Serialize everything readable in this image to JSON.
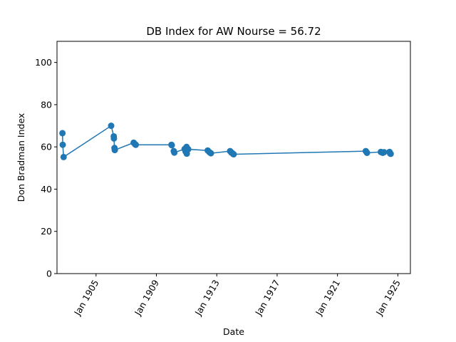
{
  "chart_data": {
    "type": "line",
    "title": "DB Index for AW Nourse = 56.72",
    "xlabel": "Date",
    "ylabel": "Don Bradman Index",
    "xlim": [
      "1902-06-01",
      "1925-11-01"
    ],
    "ylim": [
      0,
      110
    ],
    "x_ticks": [
      {
        "date": "1905-01-01",
        "label": "Jan 1905"
      },
      {
        "date": "1909-01-01",
        "label": "Jan 1909"
      },
      {
        "date": "1913-01-01",
        "label": "Jan 1913"
      },
      {
        "date": "1917-01-01",
        "label": "Jan 1917"
      },
      {
        "date": "1921-01-01",
        "label": "Jan 1921"
      },
      {
        "date": "1925-01-01",
        "label": "Jan 1925"
      }
    ],
    "y_ticks": [
      0,
      20,
      40,
      60,
      80,
      100
    ],
    "grid": false,
    "color": "#1f77b4",
    "series": [
      {
        "x": [
          "1902-10-11",
          "1902-10-18",
          "1902-11-08",
          "1906-01-02",
          "1906-03-06",
          "1906-03-10",
          "1906-03-24",
          "1906-03-31",
          "1907-07-01",
          "1907-08-01",
          "1907-08-20",
          "1910-01-01",
          "1910-01-08",
          "1910-02-26",
          "1910-03-11",
          "1910-11-15",
          "1910-12-09",
          "1911-01-01",
          "1911-01-06",
          "1911-02-10",
          "1912-05-27",
          "1912-07-08",
          "1912-08-12",
          "1913-11-20",
          "1913-12-18",
          "1914-01-01",
          "1914-01-30",
          "1914-02-14",
          "1922-11-18",
          "1922-12-16",
          "1923-11-16",
          "1924-01-01",
          "1924-02-01",
          "1924-06-14",
          "1924-06-28",
          "1924-07-12"
        ],
        "y": [
          66.5,
          61,
          55.2,
          70,
          65,
          64,
          59.5,
          58.5,
          62,
          61.3,
          61,
          61,
          60.8,
          58,
          57.3,
          59,
          57.8,
          60,
          56.8,
          58.9,
          58.3,
          57.5,
          57.0,
          58,
          57.4,
          57.2,
          56.7,
          56.5,
          58,
          57.2,
          57.6,
          57.2,
          57.5,
          57.6,
          56.9,
          56.72
        ]
      }
    ]
  }
}
